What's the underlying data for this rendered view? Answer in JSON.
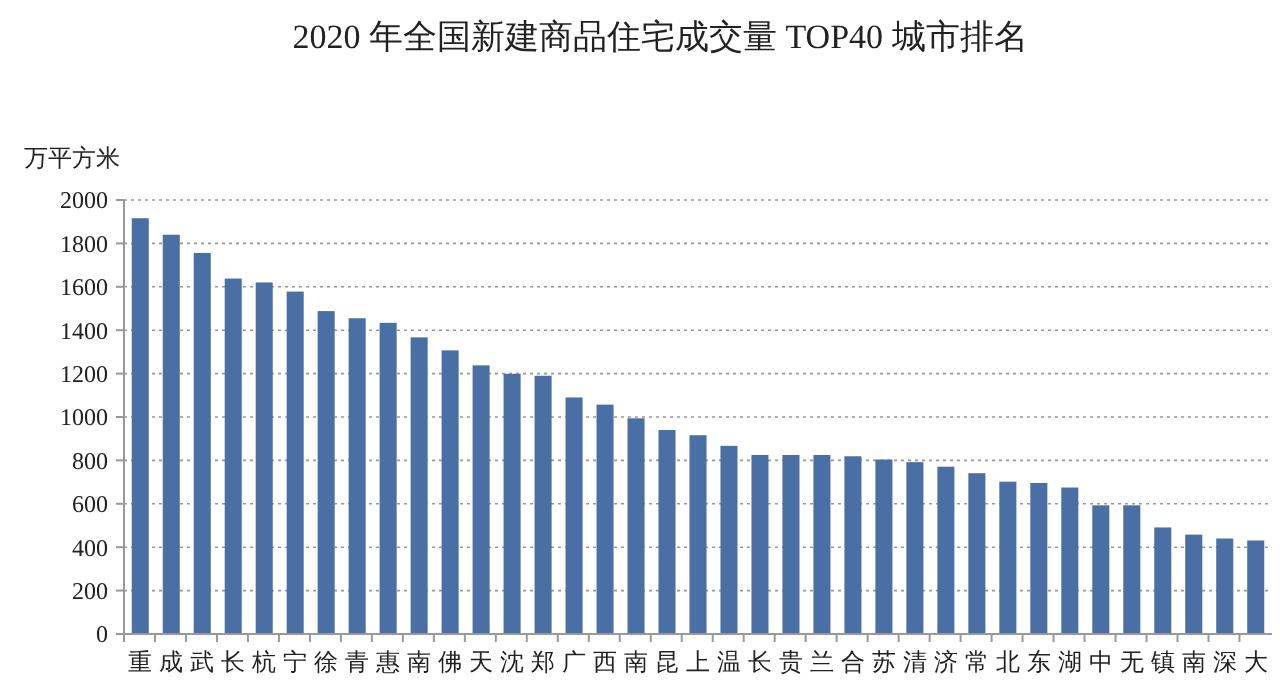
{
  "chart_data": {
    "type": "bar",
    "title": "2020 年全国新建商品住宅成交量 TOP40 城市排名",
    "ylabel": "万平方米",
    "categories": [
      "重",
      "成",
      "武",
      "长",
      "杭",
      "宁",
      "徐",
      "青",
      "惠",
      "南",
      "佛",
      "天",
      "沈",
      "郑",
      "广",
      "西",
      "南",
      "昆",
      "上",
      "温",
      "长",
      "贵",
      "兰",
      "合",
      "苏",
      "清",
      "济",
      "常",
      "北",
      "东",
      "湖",
      "中",
      "无",
      "镇",
      "南",
      "深",
      "大"
    ],
    "values": [
      1916,
      1840,
      1756,
      1638,
      1620,
      1578,
      1488,
      1455,
      1434,
      1367,
      1307,
      1238,
      1199,
      1190,
      1090,
      1057,
      994,
      940,
      916,
      867,
      825,
      825,
      825,
      819,
      804,
      792,
      771,
      741,
      702,
      696,
      675,
      593,
      593,
      491,
      458,
      440,
      431
    ],
    "color": "#4a6fa5",
    "ylim": [
      0,
      2000
    ],
    "yticks": [
      0,
      200,
      400,
      600,
      800,
      1000,
      1200,
      1400,
      1600,
      1800,
      2000
    ],
    "grid": "y"
  }
}
